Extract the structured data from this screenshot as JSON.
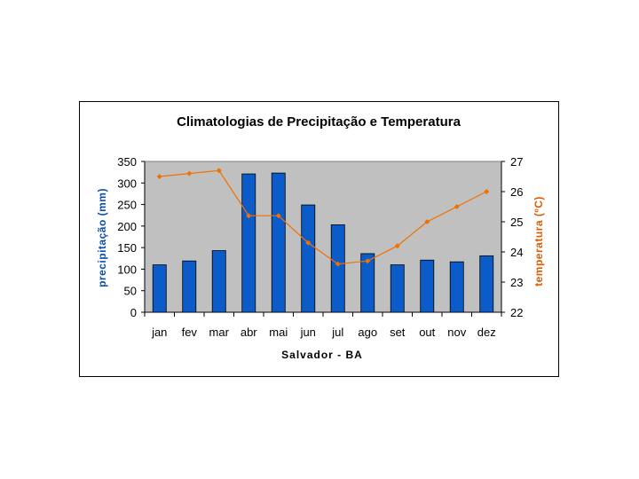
{
  "chart_data": {
    "type": "bar",
    "title": "Climatologias de Precipitação e Temperatura",
    "xlabel": "Salvador - BA",
    "ylabel": "precipitação (mm)",
    "y2label": "temperatura (ºC)",
    "categories": [
      "jan",
      "fev",
      "mar",
      "abr",
      "mai",
      "jun",
      "jul",
      "ago",
      "set",
      "out",
      "nov",
      "dez"
    ],
    "ylim": [
      0,
      350
    ],
    "yticks": [
      0,
      50,
      100,
      150,
      200,
      250,
      300,
      350
    ],
    "y2lim": [
      22,
      27
    ],
    "y2ticks": [
      22,
      23,
      24,
      25,
      26,
      27
    ],
    "grid": false,
    "series": [
      {
        "name": "precipitação",
        "type": "bar",
        "axis": "left",
        "color": "#0b5cc8",
        "values": [
          110,
          119,
          143,
          321,
          323,
          249,
          203,
          136,
          110,
          121,
          117,
          131
        ]
      },
      {
        "name": "temperatura",
        "type": "line",
        "axis": "right",
        "color": "#f07000",
        "values": [
          26.5,
          26.6,
          26.7,
          25.2,
          25.2,
          24.3,
          23.6,
          23.7,
          24.2,
          25.0,
          25.5,
          26.0
        ]
      }
    ],
    "plot_background": "#c0c0c0"
  }
}
